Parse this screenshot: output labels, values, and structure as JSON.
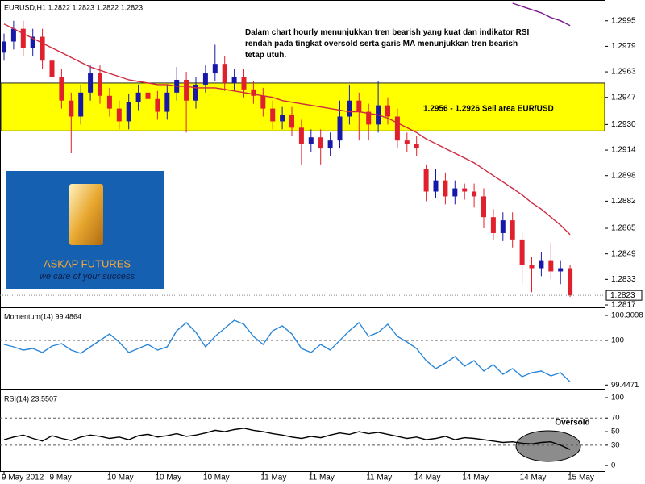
{
  "chart_data": [
    {
      "type": "candlestick",
      "title": "EURUSD,H1  1.2822  1.2823  1.2822  1.2823",
      "annotation": "Dalam chart hourly menunjukkan tren bearish yang kuat dan indikator RSI rendah pada tingkat oversold serta garis MA menunjukkan tren bearish tetap utuh.",
      "logo": {
        "title": "ASKAP FUTURES",
        "subtitle": "we care of your success"
      },
      "band": {
        "range": [
          1.2926,
          1.2956
        ],
        "label": "1.2956 - 1.2926 Sell area EUR/USD",
        "color": "#ffff00"
      },
      "categories": [
        "9 May 2012",
        null,
        null,
        null,
        null,
        "9 May",
        null,
        null,
        null,
        null,
        null,
        "10 May",
        null,
        null,
        null,
        null,
        "10 May",
        null,
        null,
        null,
        null,
        "10 May",
        null,
        null,
        null,
        null,
        null,
        "11 May",
        null,
        null,
        null,
        null,
        "11 May",
        null,
        null,
        null,
        null,
        null,
        "11 May",
        null,
        null,
        null,
        null,
        "14 May",
        null,
        null,
        null,
        null,
        "14 May",
        null,
        null,
        null,
        null,
        null,
        "14 May",
        null,
        null,
        null,
        null,
        "15 May"
      ],
      "open": [
        1.2975,
        1.2982,
        1.299,
        1.2978,
        1.2985,
        1.297,
        1.296,
        1.2945,
        1.2935,
        1.295,
        1.2962,
        1.2948,
        1.294,
        1.2932,
        1.2944,
        1.295,
        1.2946,
        1.2938,
        1.295,
        1.2958,
        1.2945,
        1.2955,
        1.2962,
        1.2968,
        1.2956,
        1.296,
        1.2952,
        1.2948,
        1.294,
        1.2932,
        1.2936,
        1.2928,
        1.2918,
        1.2922,
        1.2915,
        1.292,
        1.2935,
        1.2945,
        1.2938,
        1.293,
        1.2942,
        1.2935,
        1.292,
        1.2918,
        1.2902,
        1.2888,
        1.2895,
        1.2885,
        1.289,
        1.2888,
        1.2885,
        1.2872,
        1.2862,
        1.287,
        1.2858,
        1.2842,
        1.284,
        1.2845,
        1.2838,
        1.284
      ],
      "high": [
        1.2987,
        1.2995,
        1.2995,
        1.299,
        1.299,
        1.2975,
        1.2965,
        1.295,
        1.2955,
        1.2967,
        1.2967,
        1.2953,
        1.2945,
        1.2949,
        1.2955,
        1.2955,
        1.2951,
        1.2955,
        1.2966,
        1.2963,
        1.296,
        1.2967,
        1.298,
        1.2973,
        1.2965,
        1.2965,
        1.2957,
        1.2953,
        1.2945,
        1.2941,
        1.2941,
        1.2933,
        1.2927,
        1.2927,
        1.2925,
        1.2945,
        1.2955,
        1.295,
        1.2943,
        1.2957,
        1.2947,
        1.294,
        1.2925,
        1.2923,
        1.2905,
        1.2902,
        1.29,
        1.2895,
        1.2893,
        1.2893,
        1.289,
        1.2877,
        1.2875,
        1.2875,
        1.2863,
        1.2847,
        1.285,
        1.2856,
        1.2845,
        1.2842
      ],
      "low": [
        1.297,
        1.2977,
        1.2973,
        1.2973,
        1.2965,
        1.2955,
        1.294,
        1.2912,
        1.293,
        1.2945,
        1.2943,
        1.2935,
        1.2927,
        1.2927,
        1.2939,
        1.2941,
        1.2933,
        1.2933,
        1.2945,
        1.2925,
        1.294,
        1.295,
        1.2957,
        1.2951,
        1.2951,
        1.2947,
        1.2943,
        1.2935,
        1.2927,
        1.2927,
        1.2923,
        1.2905,
        1.2913,
        1.2905,
        1.291,
        1.2915,
        1.293,
        1.292,
        1.292,
        1.2925,
        1.293,
        1.2915,
        1.2913,
        1.291,
        1.2882,
        1.2884,
        1.288,
        1.288,
        1.2883,
        1.2878,
        1.2865,
        1.2858,
        1.2857,
        1.2853,
        1.283,
        1.2825,
        1.2835,
        1.2833,
        1.283,
        1.2822
      ],
      "close": [
        1.2982,
        1.299,
        1.2978,
        1.2985,
        1.297,
        1.296,
        1.2945,
        1.2935,
        1.295,
        1.2962,
        1.2948,
        1.294,
        1.2932,
        1.2944,
        1.295,
        1.2946,
        1.2938,
        1.295,
        1.2958,
        1.2945,
        1.2955,
        1.2962,
        1.2968,
        1.2956,
        1.296,
        1.2952,
        1.2948,
        1.294,
        1.2932,
        1.2936,
        1.2928,
        1.2918,
        1.2922,
        1.2915,
        1.292,
        1.2935,
        1.2945,
        1.2938,
        1.293,
        1.2942,
        1.2935,
        1.292,
        1.2918,
        1.2915,
        1.2888,
        1.2895,
        1.2885,
        1.289,
        1.2888,
        1.2885,
        1.2872,
        1.2862,
        1.287,
        1.2858,
        1.2842,
        1.284,
        1.2845,
        1.2838,
        1.284,
        1.2823
      ],
      "up_color": "#1818a8",
      "down_color": "#e0202c",
      "lines": [
        {
          "color": "#d02a40",
          "values": [
            1.2993,
            1.299,
            1.2987,
            1.2984,
            1.2981,
            1.2978,
            1.2975,
            1.2972,
            1.2969,
            1.2966,
            1.2964,
            1.2962,
            1.296,
            1.2958,
            1.2957,
            1.2956,
            1.2955,
            1.2955,
            1.2954,
            1.2954,
            1.2953,
            1.2953,
            1.2953,
            1.2952,
            1.2951,
            1.295,
            1.2949,
            1.2948,
            1.2947,
            1.2945,
            1.2944,
            1.2943,
            1.2942,
            1.2941,
            1.294,
            1.2939,
            1.2938,
            1.2938,
            1.2937,
            1.2936,
            1.2934,
            1.2931,
            1.2928,
            1.2925,
            1.2921,
            1.2918,
            1.2915,
            1.2912,
            1.2909,
            1.2906,
            1.2902,
            1.2898,
            1.2894,
            1.289,
            1.2886,
            1.2881,
            1.2877,
            1.2872,
            1.2867,
            1.2861
          ]
        },
        {
          "color": "#7a1a8c",
          "values": [
            null,
            null,
            null,
            null,
            null,
            null,
            null,
            null,
            null,
            null,
            null,
            null,
            null,
            null,
            null,
            null,
            null,
            null,
            null,
            null,
            null,
            null,
            null,
            null,
            null,
            null,
            null,
            null,
            null,
            null,
            null,
            null,
            null,
            null,
            null,
            null,
            null,
            null,
            null,
            null,
            null,
            null,
            null,
            null,
            null,
            null,
            null,
            null,
            null,
            null,
            null,
            null,
            null,
            1.3006,
            1.3004,
            1.3002,
            1.3,
            1.2997,
            1.2995,
            1.2992
          ]
        }
      ],
      "last_price": 1.2823,
      "ylim": [
        1.2816,
        1.3007
      ],
      "yticks": [
        1.2995,
        1.2979,
        1.2963,
        1.2947,
        {
          "value": 1.293,
          "label": "1.2930"
        },
        1.2914,
        1.2898,
        1.2882,
        1.2865,
        1.2849,
        1.2833,
        1.2817
      ]
    },
    {
      "type": "line",
      "title": "Momentum(14) 99.4864",
      "series": [
        {
          "color": "#2a86d8",
          "values": [
            99.95,
            99.92,
            99.88,
            99.9,
            99.85,
            99.93,
            99.96,
            99.88,
            99.84,
            99.92,
            100.0,
            100.08,
            99.98,
            99.85,
            99.9,
            99.95,
            99.88,
            99.92,
            100.12,
            100.22,
            100.1,
            99.92,
            100.05,
            100.15,
            100.25,
            100.2,
            100.05,
            99.95,
            100.12,
            100.18,
            100.08,
            99.9,
            99.85,
            99.95,
            99.88,
            100.0,
            100.12,
            100.22,
            100.05,
            100.1,
            100.2,
            100.05,
            99.98,
            99.9,
            99.75,
            99.65,
            99.72,
            99.8,
            99.68,
            99.75,
            99.62,
            99.7,
            99.58,
            99.65,
            99.55,
            99.6,
            99.62,
            99.56,
            99.6,
            99.4864
          ]
        }
      ],
      "levels": [
        100
      ],
      "ylim": [
        99.41,
        100.39
      ],
      "yticks": [
        100.3098,
        100,
        99.4471
      ]
    },
    {
      "type": "line",
      "title": "RSI(14) 23.5507",
      "annotation": "Oversold",
      "series": [
        {
          "color": "#000000",
          "values": [
            38,
            42,
            45,
            40,
            36,
            44,
            40,
            37,
            42,
            45,
            43,
            40,
            42,
            38,
            44,
            46,
            42,
            44,
            47,
            43,
            45,
            48,
            52,
            50,
            53,
            55,
            52,
            50,
            47,
            45,
            42,
            40,
            43,
            41,
            45,
            48,
            46,
            50,
            47,
            49,
            46,
            43,
            40,
            42,
            38,
            40,
            43,
            38,
            41,
            40,
            38,
            36,
            34,
            35,
            33,
            32,
            34,
            35,
            30,
            23.5507
          ]
        }
      ],
      "levels": [
        70,
        30
      ],
      "ylim": [
        -7,
        109.5
      ],
      "yticks": [
        100,
        70,
        50,
        30,
        0
      ]
    }
  ]
}
